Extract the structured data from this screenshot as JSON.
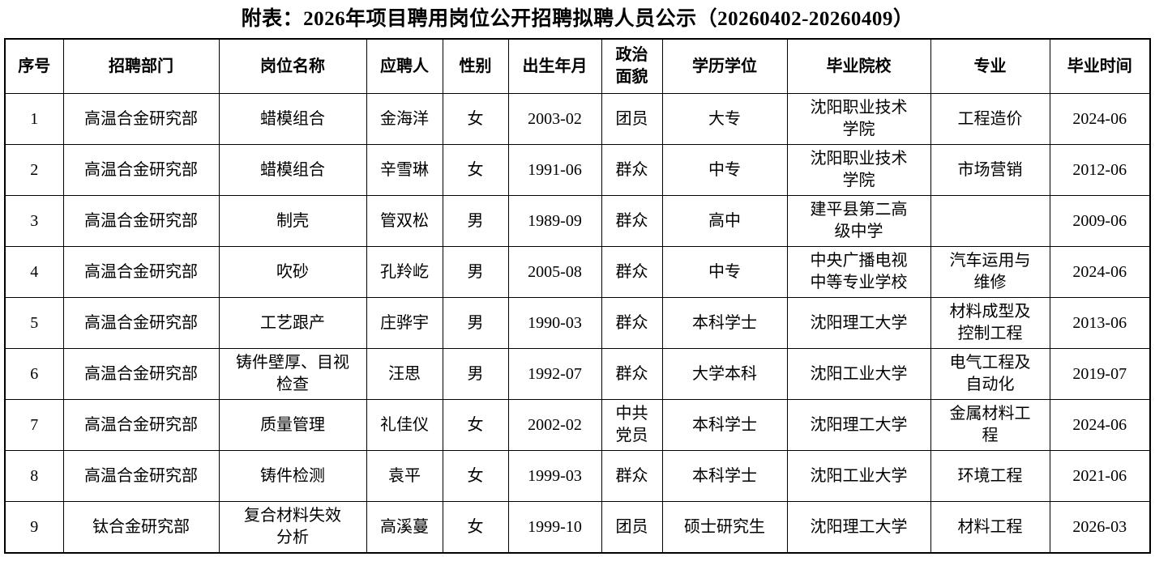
{
  "title": "附表：2026年项目聘用岗位公开招聘拟聘人员公示（20260402-20260409）",
  "table": {
    "columns": [
      "序号",
      "招聘部门",
      "岗位名称",
      "应聘人",
      "性别",
      "出生年月",
      "政治\n面貌",
      "学历学位",
      "毕业院校",
      "专业",
      "毕业时间"
    ],
    "rows": [
      [
        "1",
        "高温合金研究部",
        "蜡模组合",
        "金海洋",
        "女",
        "2003-02",
        "团员",
        "大专",
        "沈阳职业技术\n学院",
        "工程造价",
        "2024-06"
      ],
      [
        "2",
        "高温合金研究部",
        "蜡模组合",
        "辛雪琳",
        "女",
        "1991-06",
        "群众",
        "中专",
        "沈阳职业技术\n学院",
        "市场营销",
        "2012-06"
      ],
      [
        "3",
        "高温合金研究部",
        "制壳",
        "管双松",
        "男",
        "1989-09",
        "群众",
        "高中",
        "建平县第二高\n级中学",
        "",
        "2009-06"
      ],
      [
        "4",
        "高温合金研究部",
        "吹砂",
        "孔羚屹",
        "男",
        "2005-08",
        "群众",
        "中专",
        "中央广播电视\n中等专业学校",
        "汽车运用与\n维修",
        "2024-06"
      ],
      [
        "5",
        "高温合金研究部",
        "工艺跟产",
        "庄骅宇",
        "男",
        "1990-03",
        "群众",
        "本科学士",
        "沈阳理工大学",
        "材料成型及\n控制工程",
        "2013-06"
      ],
      [
        "6",
        "高温合金研究部",
        "铸件壁厚、目视\n检查",
        "汪思",
        "男",
        "1992-07",
        "群众",
        "大学本科",
        "沈阳工业大学",
        "电气工程及\n自动化",
        "2019-07"
      ],
      [
        "7",
        "高温合金研究部",
        "质量管理",
        "礼佳仪",
        "女",
        "2002-02",
        "中共\n党员",
        "本科学士",
        "沈阳理工大学",
        "金属材料工\n程",
        "2024-06"
      ],
      [
        "8",
        "高温合金研究部",
        "铸件检测",
        "袁平",
        "女",
        "1999-03",
        "群众",
        "本科学士",
        "沈阳工业大学",
        "环境工程",
        "2021-06"
      ],
      [
        "9",
        "钛合金研究部",
        "复合材料失效\n分析",
        "高溪蔓",
        "女",
        "1999-10",
        "团员",
        "硕士研究生",
        "沈阳理工大学",
        "材料工程",
        "2026-03"
      ]
    ]
  }
}
